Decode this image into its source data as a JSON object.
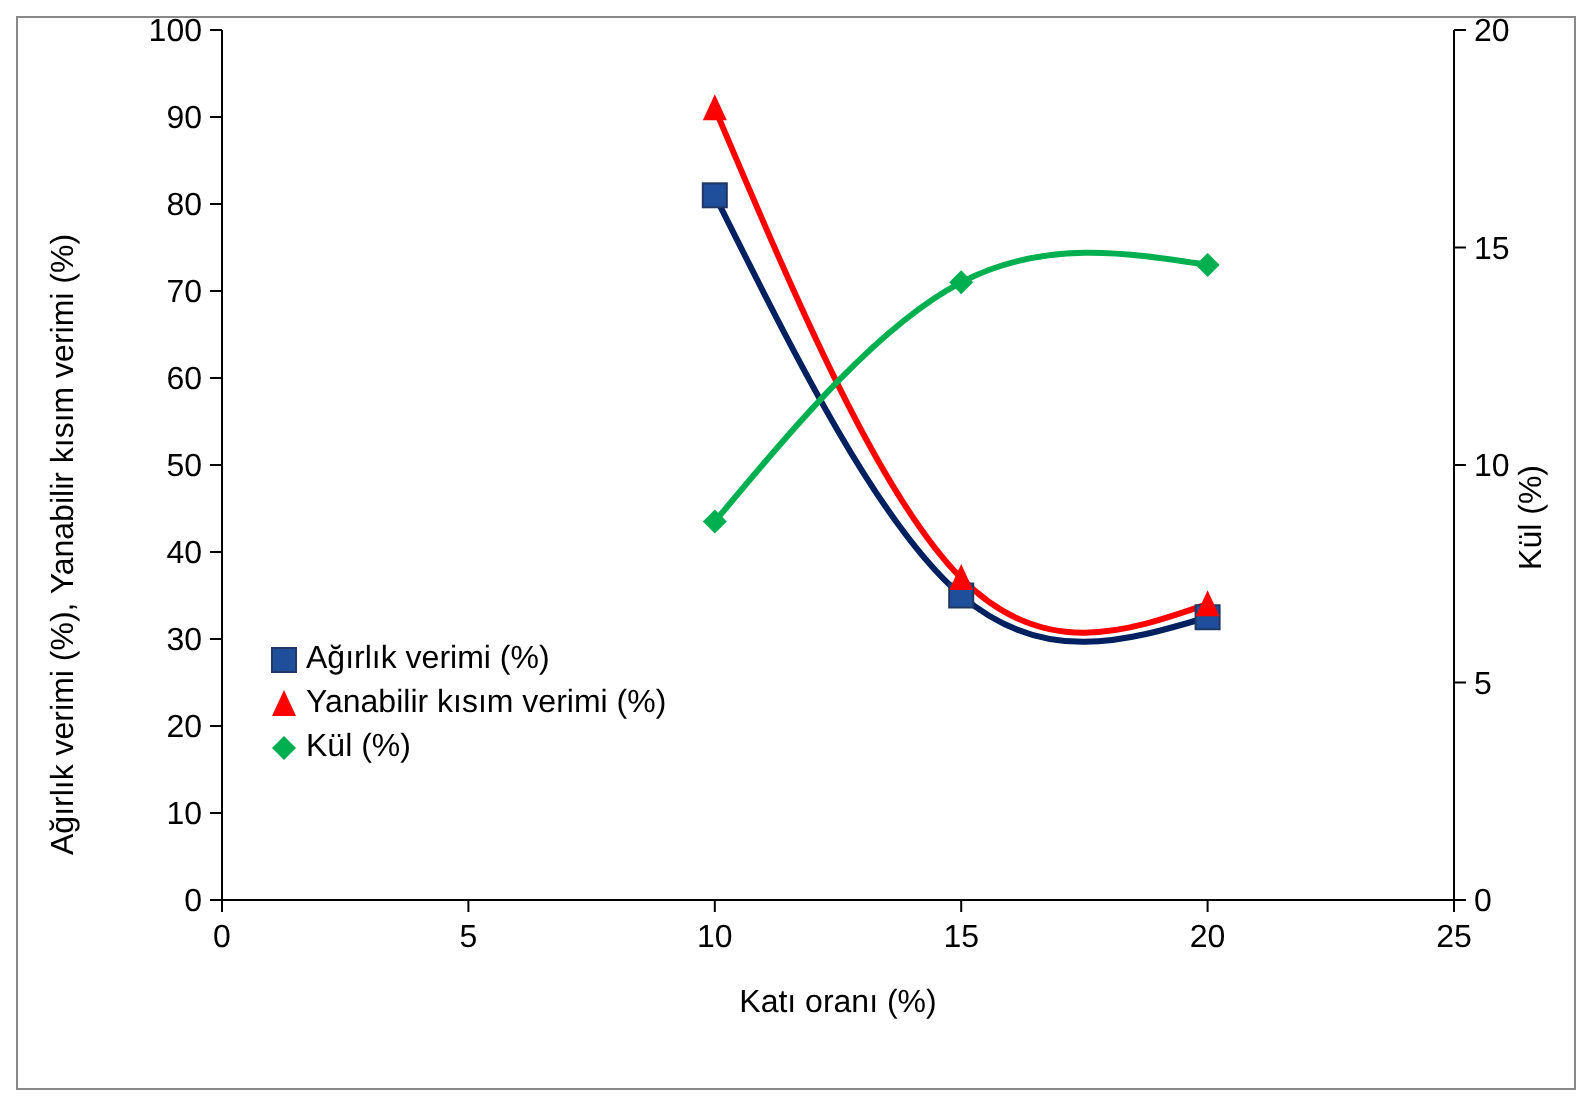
{
  "chart_data": {
    "type": "line",
    "xlabel": "Katı oranı (%)",
    "ylabel": "Ağırlık verimi (%), Yanabilir kısım verimi (%)",
    "y2label": "Kül (%)",
    "x": [
      10,
      15,
      20
    ],
    "series": [
      {
        "name": "Ağırlık verimi (%)",
        "color": "#002060",
        "marker": "square",
        "values": [
          81,
          35,
          32.5
        ]
      },
      {
        "name": "Yanabilir kısım verimi (%)",
        "color": "#ff0000",
        "marker": "triangle",
        "values": [
          91,
          37,
          34
        ]
      },
      {
        "name": "Kül (%)",
        "color": "#00b050",
        "marker": "diamond",
        "axis": "y2",
        "values": [
          8.7,
          14.2,
          14.6
        ]
      }
    ],
    "xlim": [
      0,
      25
    ],
    "xticks": [
      0,
      5,
      10,
      15,
      20,
      25
    ],
    "ylim": [
      0,
      100
    ],
    "yticks": [
      0,
      10,
      20,
      30,
      40,
      50,
      60,
      70,
      80,
      90,
      100
    ],
    "y2lim": [
      0,
      20
    ],
    "y2ticks": [
      0,
      5,
      10,
      15,
      20
    ],
    "grid": false,
    "legend": "left",
    "line_style": "solid"
  }
}
